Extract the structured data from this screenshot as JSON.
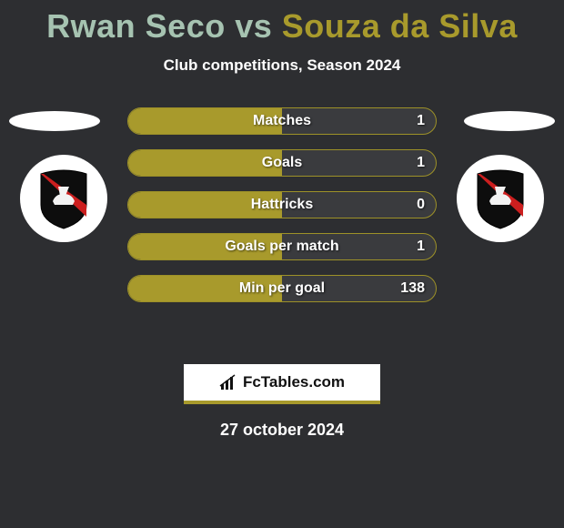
{
  "title": {
    "full": "Rwan Seco vs Souza da Silva",
    "player1": "Rwan Seco",
    "vs": " vs ",
    "player2": "Souza da Silva",
    "color1": "#a6c3b1",
    "color2": "#a89a2c",
    "fontsize": 36
  },
  "subtitle": "Club competitions, Season 2024",
  "stats": {
    "rows": [
      {
        "label": "Matches",
        "value": "1",
        "fill_pct": 50
      },
      {
        "label": "Goals",
        "value": "1",
        "fill_pct": 50
      },
      {
        "label": "Hattricks",
        "value": "0",
        "fill_pct": 50
      },
      {
        "label": "Goals per match",
        "value": "1",
        "fill_pct": 50
      },
      {
        "label": "Min per goal",
        "value": "138",
        "fill_pct": 50
      }
    ],
    "bar_fill_color": "#a89a2c",
    "bar_border_color": "#9d9128",
    "bar_bg_color": "#3a3b3e",
    "label_color": "#ffffff",
    "label_fontsize": 16
  },
  "colors": {
    "background": "#2d2e31",
    "disc": "#ffffff",
    "text": "#ffffff"
  },
  "logo": {
    "text": "FcTables.com",
    "accent": "#a89a2c"
  },
  "date": "27 october 2024",
  "crest": {
    "shield_fill": "#0d0d0d",
    "shield_stroke": "#000000",
    "sash": "#cc1f1f",
    "ship": "#f2f2f2"
  }
}
